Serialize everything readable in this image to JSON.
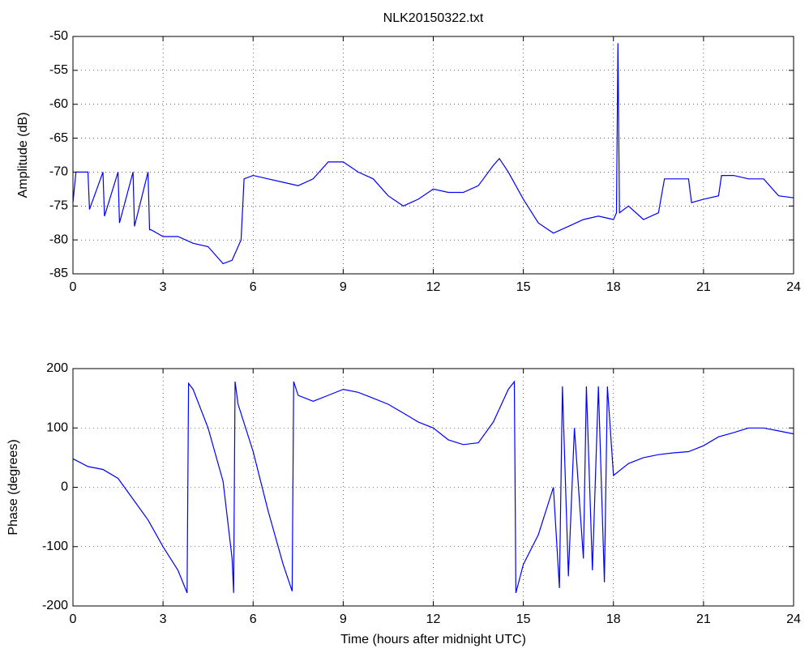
{
  "chart_data": [
    {
      "type": "line",
      "title": "NLK20150322.txt",
      "ylabel": "Amplitude (dB)",
      "color": "#0000ff",
      "grid": true,
      "xlim": [
        0,
        24
      ],
      "xticks": [
        0,
        3,
        6,
        9,
        12,
        15,
        18,
        21,
        24
      ],
      "ylim": [
        -85,
        -50
      ],
      "yticks": [
        -85,
        -80,
        -75,
        -70,
        -65,
        -60,
        -55,
        -50
      ],
      "x": [
        0,
        0.1,
        0.5,
        0.55,
        1,
        1.05,
        1.5,
        1.55,
        2,
        2.05,
        2.5,
        2.55,
        2.6,
        3,
        3.5,
        4,
        4.5,
        5,
        5.3,
        5.6,
        5.7,
        6,
        6.5,
        7,
        7.5,
        8,
        8.5,
        9,
        9.5,
        10,
        10.5,
        11,
        11.5,
        12,
        12.5,
        13,
        13.5,
        14,
        14.2,
        14.5,
        15,
        15.5,
        16,
        16.5,
        17,
        17.5,
        18,
        18.1,
        18.15,
        18.2,
        18.5,
        19,
        19.5,
        19.7,
        20,
        20.5,
        20.6,
        21,
        21.5,
        21.6,
        22,
        22.5,
        23,
        23.5,
        24
      ],
      "values": [
        -74.5,
        -70,
        -70,
        -75.5,
        -70,
        -76.5,
        -70,
        -77.5,
        -70,
        -78,
        -70,
        -78.5,
        -78.5,
        -79.5,
        -79.5,
        -80.5,
        -81,
        -83.5,
        -83,
        -80,
        -71,
        -70.5,
        -71,
        -71.5,
        -72,
        -71,
        -68.5,
        -68.5,
        -70,
        -71,
        -73.5,
        -75,
        -74,
        -72.5,
        -73,
        -73,
        -72,
        -69,
        -68,
        -70,
        -74,
        -77.5,
        -79,
        -78,
        -77,
        -76.5,
        -77,
        -76,
        -51,
        -76,
        -75,
        -77,
        -76,
        -71,
        -71,
        -71,
        -74.5,
        -74,
        -73.5,
        -70.5,
        -70.5,
        -71,
        -71,
        -73.5,
        -73.8
      ]
    },
    {
      "type": "line",
      "xlabel": "Time (hours after midnight UTC)",
      "ylabel": "Phase (degrees)",
      "color": "#0000ff",
      "grid": true,
      "xlim": [
        0,
        24
      ],
      "xticks": [
        0,
        3,
        6,
        9,
        12,
        15,
        18,
        21,
        24
      ],
      "ylim": [
        -200,
        200
      ],
      "yticks": [
        -200,
        -100,
        0,
        100,
        200
      ],
      "x": [
        0,
        0.5,
        1,
        1.5,
        2,
        2.5,
        3,
        3.5,
        3.8,
        3.85,
        4,
        4.5,
        5,
        5.3,
        5.35,
        5.4,
        5.5,
        6,
        6.5,
        7,
        7.3,
        7.35,
        7.5,
        8,
        8.5,
        9,
        9.5,
        10,
        10.5,
        11,
        11.5,
        12,
        12.5,
        13,
        13.5,
        14,
        14.5,
        14.7,
        14.75,
        15,
        15.5,
        16,
        16.2,
        16.3,
        16.5,
        16.7,
        17,
        17.1,
        17.3,
        17.5,
        17.7,
        17.8,
        18,
        18.5,
        19,
        19.5,
        20,
        20.5,
        21,
        21.5,
        22,
        22.5,
        23,
        23.5,
        24
      ],
      "values": [
        48,
        35,
        30,
        15,
        -20,
        -55,
        -100,
        -140,
        -178,
        175,
        165,
        100,
        10,
        -120,
        -178,
        178,
        140,
        60,
        -40,
        -130,
        -175,
        178,
        155,
        145,
        155,
        165,
        160,
        150,
        140,
        125,
        110,
        100,
        80,
        72,
        75,
        110,
        165,
        178,
        -178,
        -130,
        -80,
        0,
        -170,
        170,
        -150,
        100,
        -120,
        170,
        -140,
        170,
        -160,
        170,
        20,
        40,
        50,
        55,
        58,
        60,
        70,
        85,
        92,
        100,
        100,
        95,
        90
      ]
    }
  ]
}
